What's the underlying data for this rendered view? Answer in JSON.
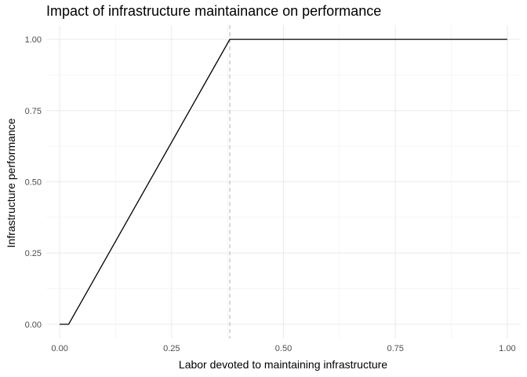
{
  "chart_data": {
    "type": "line",
    "title": "Impact of infrastructure maintainance on performance",
    "xlabel": "Labor devoted to maintaining infrastructure",
    "ylabel": "Infrastructure performance",
    "xlim": [
      -0.03,
      1.03
    ],
    "ylim": [
      -0.05,
      1.05
    ],
    "x_ticks": [
      0,
      0.25,
      0.5,
      0.75,
      1
    ],
    "x_tick_labels": [
      "0.00",
      "0.25",
      "0.50",
      "0.75",
      "1.00"
    ],
    "y_ticks": [
      0,
      0.25,
      0.5,
      0.75,
      1
    ],
    "y_tick_labels": [
      "0.00",
      "0.25",
      "0.50",
      "0.75",
      "1.00"
    ],
    "grid": true,
    "series": [
      {
        "x": [
          0,
          0.02,
          0.38,
          1.0
        ],
        "y": [
          0,
          0,
          1,
          1
        ],
        "color": "#000000"
      }
    ],
    "reference_line": {
      "axis": "x",
      "value": 0.38,
      "style": "dashed",
      "color": "#bfbfbf"
    }
  }
}
